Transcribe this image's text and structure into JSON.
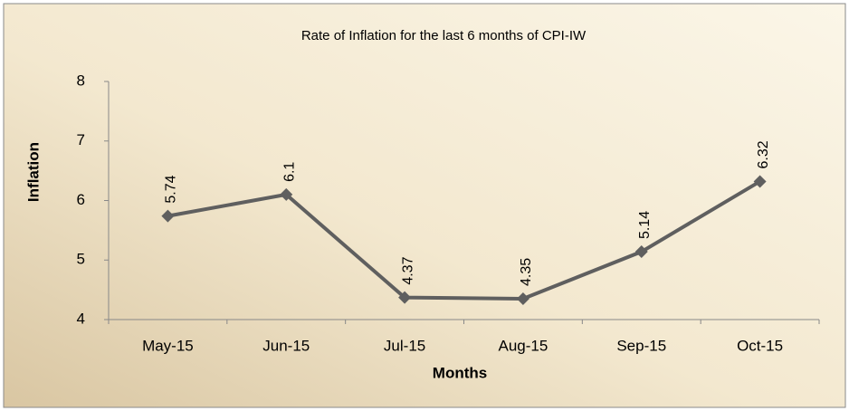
{
  "chart_data": {
    "type": "line",
    "title": "Rate of Inflation  for the last 6 months of CPI-IW",
    "x_label": "Months",
    "y_label": "Inflation",
    "categories": [
      "May-15",
      "Jun-15",
      "Jul-15",
      "Aug-15",
      "Sep-15",
      "Oct-15"
    ],
    "series": [
      {
        "name": "Inflation",
        "color": "#5f5f5f",
        "values": [
          5.74,
          6.1,
          4.37,
          4.35,
          5.14,
          6.32
        ]
      }
    ],
    "ylim": [
      4,
      8
    ],
    "yticks": [
      4,
      5,
      6,
      7,
      8
    ],
    "grid": false
  }
}
